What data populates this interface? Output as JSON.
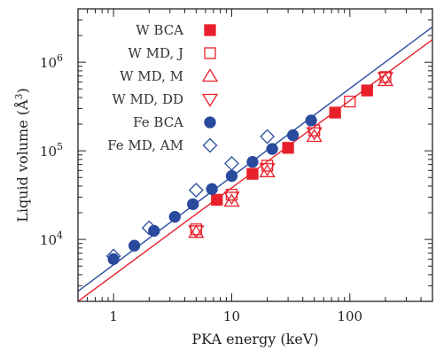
{
  "chart_data": {
    "type": "scatter",
    "title": "",
    "xlabel": "PKA energy (keV)",
    "ylabel_main": "Liquid volume (",
    "ylabel_unit": "Å",
    "ylabel_exp": "3",
    "ylabel_close": ")",
    "xscale": "log",
    "yscale": "log",
    "xlim": [
      0.5,
      500
    ],
    "ylim": [
      2000,
      4000000
    ],
    "x_ticks": [
      {
        "value": 1,
        "label": "1"
      },
      {
        "value": 10,
        "label": "10"
      },
      {
        "value": 100,
        "label": "100"
      }
    ],
    "y_ticks": [
      {
        "value": 10000,
        "base": "10",
        "exp": "4"
      },
      {
        "value": 100000,
        "base": "10",
        "exp": "5"
      },
      {
        "value": 1000000,
        "base": "10",
        "exp": "6"
      }
    ],
    "legend_position": "top-left",
    "series": [
      {
        "name": "W BCA",
        "marker": "square-filled",
        "color": "#e8202a",
        "points": [
          [
            7.5,
            28000
          ],
          [
            15,
            55000
          ],
          [
            30,
            108000
          ],
          [
            75,
            270000
          ],
          [
            140,
            480000
          ]
        ]
      },
      {
        "name": "W MD, J",
        "marker": "square-open",
        "color": "#e8202a",
        "points": [
          [
            5,
            13000
          ],
          [
            10,
            32000
          ],
          [
            20,
            68000
          ],
          [
            50,
            170000
          ],
          [
            100,
            360000
          ],
          [
            200,
            680000
          ]
        ]
      },
      {
        "name": "W MD, M",
        "marker": "triangle-up-open",
        "color": "#e8202a",
        "points": [
          [
            5,
            12000
          ],
          [
            10,
            27000
          ],
          [
            20,
            58000
          ],
          [
            50,
            145000
          ],
          [
            200,
            620000
          ]
        ]
      },
      {
        "name": "W MD, DD",
        "marker": "triangle-down-open",
        "color": "#e8202a",
        "points": [
          [
            5,
            12500
          ],
          [
            10,
            30000
          ],
          [
            20,
            63000
          ],
          [
            50,
            160000
          ],
          [
            200,
            670000
          ]
        ]
      },
      {
        "name": "Fe BCA",
        "marker": "circle-filled",
        "color": "#2a4a9e",
        "points": [
          [
            1,
            6000
          ],
          [
            1.5,
            8500
          ],
          [
            2.2,
            12500
          ],
          [
            3.3,
            18000
          ],
          [
            4.7,
            25000
          ],
          [
            6.8,
            37000
          ],
          [
            10,
            52000
          ],
          [
            15,
            75000
          ],
          [
            22,
            105000
          ],
          [
            33,
            150000
          ],
          [
            47,
            220000
          ]
        ]
      },
      {
        "name": "Fe MD, AM",
        "marker": "diamond-open",
        "color": "#2a4a9e",
        "points": [
          [
            1,
            6500
          ],
          [
            2,
            13500
          ],
          [
            5,
            36000
          ],
          [
            10,
            72000
          ],
          [
            20,
            145000
          ]
        ]
      }
    ],
    "fit_lines": [
      {
        "color": "#e8202a",
        "from": [
          0.5,
          2000
        ],
        "to": [
          500,
          1800000
        ]
      },
      {
        "color": "#2a4a9e",
        "from": [
          0.5,
          2600
        ],
        "to": [
          500,
          2500000
        ]
      }
    ]
  }
}
